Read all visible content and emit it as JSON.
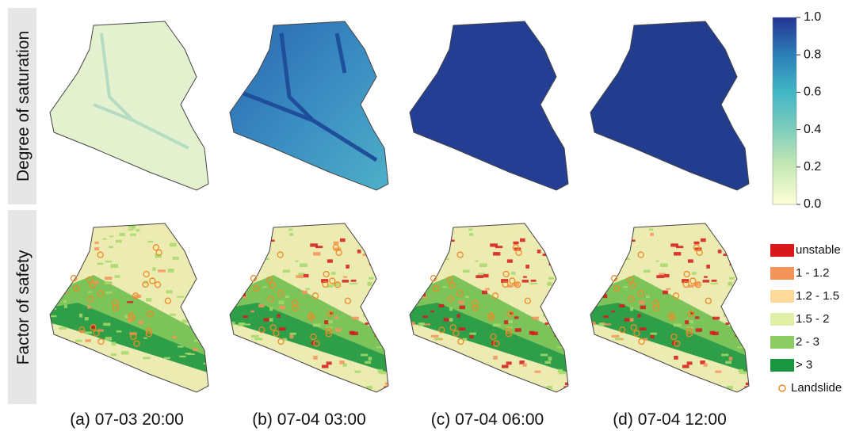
{
  "row_labels": [
    "Degree of saturation",
    "Factor of safety"
  ],
  "captions": [
    "(a) 07-03 20:00",
    "(b) 07-04 03:00",
    "(c) 07-04 06:00",
    "(d) 07-04 12:00"
  ],
  "colorbar": {
    "range": [
      0,
      1
    ],
    "ticks": [
      {
        "value": 1,
        "label": "1.0"
      },
      {
        "value": 0.8,
        "label": "0.8"
      },
      {
        "value": 0.6,
        "label": "0.6"
      },
      {
        "value": 0.4,
        "label": "0.4"
      },
      {
        "value": 0.2,
        "label": "0.2"
      },
      {
        "value": 0,
        "label": "0.0"
      }
    ]
  },
  "legend": [
    "unstable",
    "1 - 1.2",
    "1.2 - 1.5",
    "1.5 - 2",
    "2 - 3",
    "> 3",
    "Landslide"
  ]
}
